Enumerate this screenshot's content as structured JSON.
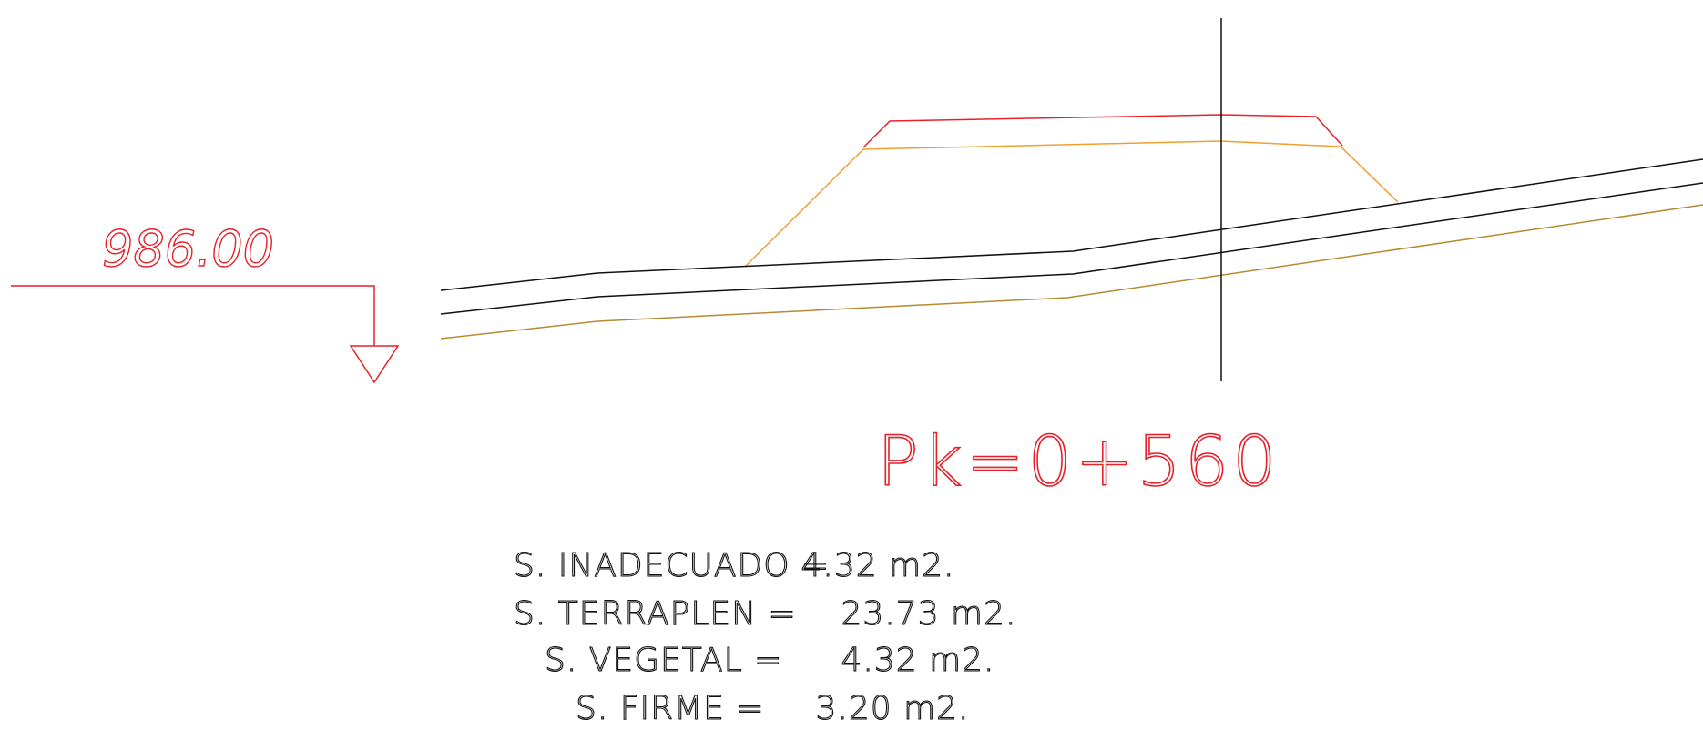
{
  "datum": {
    "elevation_label": "986.00"
  },
  "station": {
    "label": "Pk=0+560"
  },
  "areas": [
    {
      "label": "S. INADECUADO =",
      "value": "4.32 m2."
    },
    {
      "label": "S. TERRAPLEN =",
      "value": "23.73 m2."
    },
    {
      "label": "S. VEGETAL =",
      "value": "4.32 m2."
    },
    {
      "label": "S. FIRME =",
      "value": "3.20 m2."
    }
  ],
  "colors": {
    "datum": "#e8202a",
    "embankment_top": "#e8202a",
    "embankment_slopes": "#f0a030",
    "terrain": "#111111",
    "subgrade": "#b88a30",
    "axis": "#111111",
    "text": "#111111"
  }
}
